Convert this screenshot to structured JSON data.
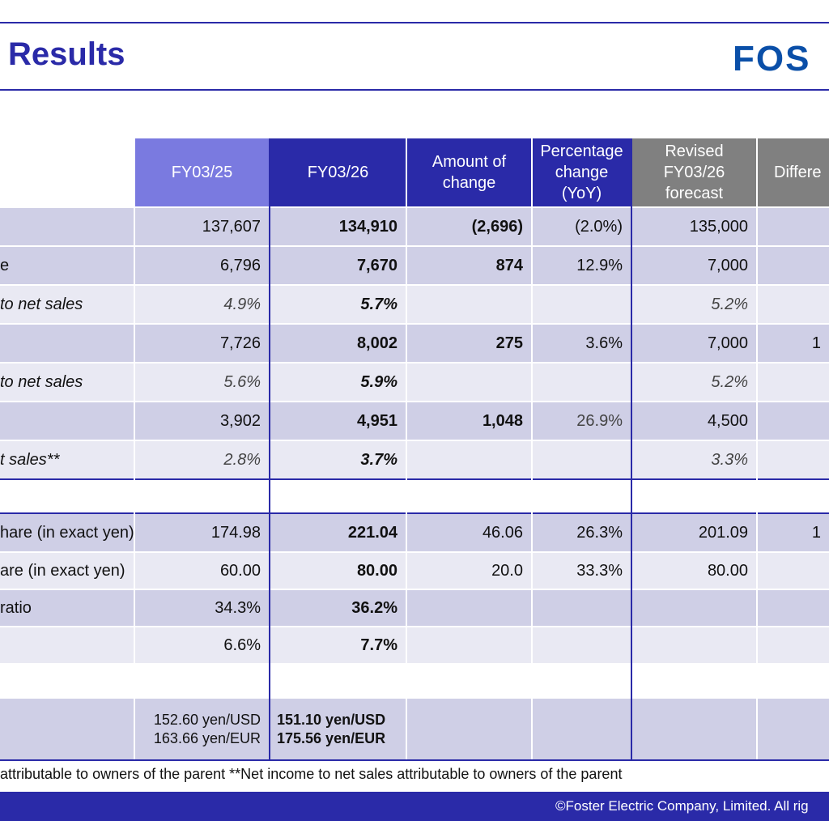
{
  "header": {
    "title": "Results",
    "logo_text": "FOS"
  },
  "table": {
    "columns": [
      "FY03/25",
      "FY03/26",
      "Amount of change",
      "Percentage change (YoY)",
      "Revised FY03/26 forecast",
      "Differe"
    ],
    "rows": [
      {
        "label": "",
        "fy25": "137,607",
        "fy26": "134,910",
        "change": "(2,696)",
        "pct": "(2.0%)",
        "forecast": "135,000",
        "diff": ""
      },
      {
        "label": "e",
        "fy25": "6,796",
        "fy26": "7,670",
        "change": "874",
        "pct": "12.9%",
        "forecast": "7,000",
        "diff": ""
      },
      {
        "label": "to net sales",
        "fy25": "4.9%",
        "fy26": "5.7%",
        "change": "",
        "pct": "",
        "forecast": "5.2%",
        "diff": ""
      },
      {
        "label": "",
        "fy25": "7,726",
        "fy26": "8,002",
        "change": "275",
        "pct": "3.6%",
        "forecast": "7,000",
        "diff": "1"
      },
      {
        "label": "to net sales",
        "fy25": "5.6%",
        "fy26": "5.9%",
        "change": "",
        "pct": "",
        "forecast": "5.2%",
        "diff": ""
      },
      {
        "label": "",
        "fy25": "3,902",
        "fy26": "4,951",
        "change": "1,048",
        "pct": "26.9%",
        "forecast": "4,500",
        "diff": ""
      },
      {
        "label": "t sales**",
        "fy25": "2.8%",
        "fy26": "3.7%",
        "change": "",
        "pct": "",
        "forecast": "3.3%",
        "diff": ""
      },
      {
        "label": "hare (in exact yen)",
        "fy25": "174.98",
        "fy26": "221.04",
        "change": "46.06",
        "pct": "26.3%",
        "forecast": "201.09",
        "diff": "1"
      },
      {
        "label": "are (in exact yen)",
        "fy25": "60.00",
        "fy26": "80.00",
        "change": "20.0",
        "pct": "33.3%",
        "forecast": "80.00",
        "diff": ""
      },
      {
        "label": "ratio",
        "fy25": "34.3%",
        "fy26": "36.2%",
        "change": "",
        "pct": "",
        "forecast": "",
        "diff": ""
      },
      {
        "label": "",
        "fy25": "6.6%",
        "fy26": "7.7%",
        "change": "",
        "pct": "",
        "forecast": "",
        "diff": ""
      }
    ],
    "rates": {
      "fy25_usd": "152.60 yen/USD",
      "fy25_eur": "163.66 yen/EUR",
      "fy26_usd": "151.10 yen/USD",
      "fy26_eur": "175.56 yen/EUR"
    }
  },
  "footnote": "attributable to owners of the parent **Net income to net sales attributable to owners of the parent",
  "footer": {
    "copyright": "©Foster Electric Company, Limited. All rig"
  },
  "colors": {
    "accent": "#2a2aa8",
    "header_fy25": "#7a7ae0",
    "header_fy26": "#2a2aa8",
    "header_gray": "#808080",
    "row_shade": "#cfcfe6",
    "row_light": "#e9e9f3"
  }
}
